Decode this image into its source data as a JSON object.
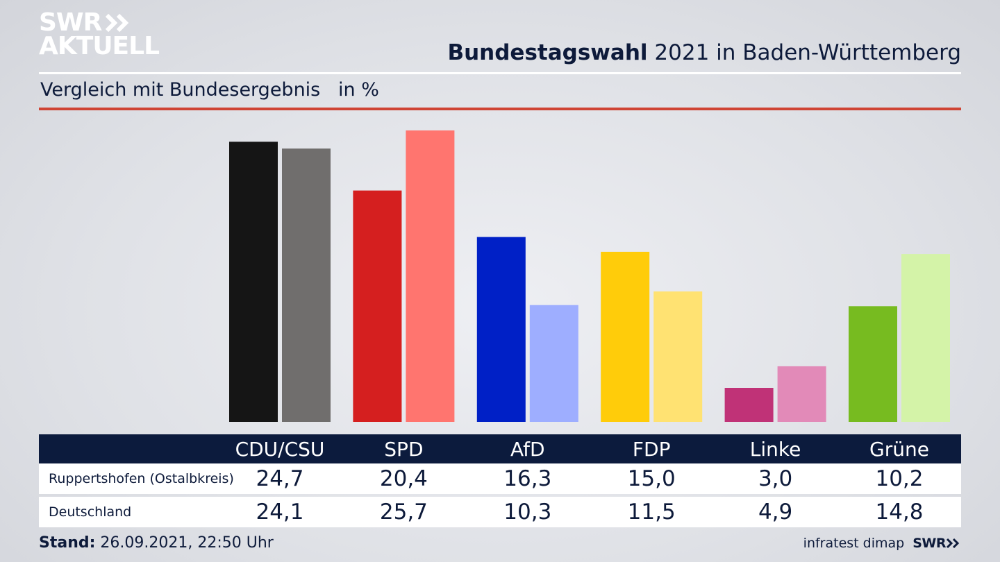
{
  "header": {
    "logo_line1": "SWR",
    "logo_line2": "AKTUELL",
    "title_bold": "Bundestagswahl",
    "title_rest": " 2021 in Baden-Württemberg",
    "subtitle": "Vergleich mit Bundesergebnis   in %"
  },
  "colors": {
    "red_rule": "#cf4434",
    "table_header_bg": "#0c1b3d",
    "text": "#0d1a3a"
  },
  "chart_data": {
    "type": "bar",
    "categories": [
      "CDU/CSU",
      "SPD",
      "AfD",
      "FDP",
      "Linke",
      "Grüne"
    ],
    "series": [
      {
        "name": "Ruppertshofen (Ostalbkreis)",
        "values": [
          24.7,
          20.4,
          16.3,
          15.0,
          3.0,
          10.2
        ],
        "colors": [
          "#151515",
          "#d51f1f",
          "#0020c6",
          "#ffcc0a",
          "#c03277",
          "#77bb20"
        ]
      },
      {
        "name": "Deutschland",
        "values": [
          24.1,
          25.7,
          10.3,
          11.5,
          4.9,
          14.8
        ],
        "colors": [
          "#706e6d",
          "#ff756f",
          "#9eaeff",
          "#ffe272",
          "#e28ab8",
          "#d4f3a8"
        ]
      }
    ],
    "value_labels": [
      [
        "24,7",
        "20,4",
        "16,3",
        "15,0",
        "3,0",
        "10,2"
      ],
      [
        "24,1",
        "25,7",
        "10,3",
        "11,5",
        "4,9",
        "14,8"
      ]
    ],
    "ylim": [
      0,
      25.7
    ],
    "grid": false,
    "legend": "table below chart"
  },
  "footer": {
    "stand_label": "Stand:",
    "stand_value": " 26.09.2021, 22:50 Uhr",
    "source": "infratest dimap",
    "brand": "SWR"
  }
}
